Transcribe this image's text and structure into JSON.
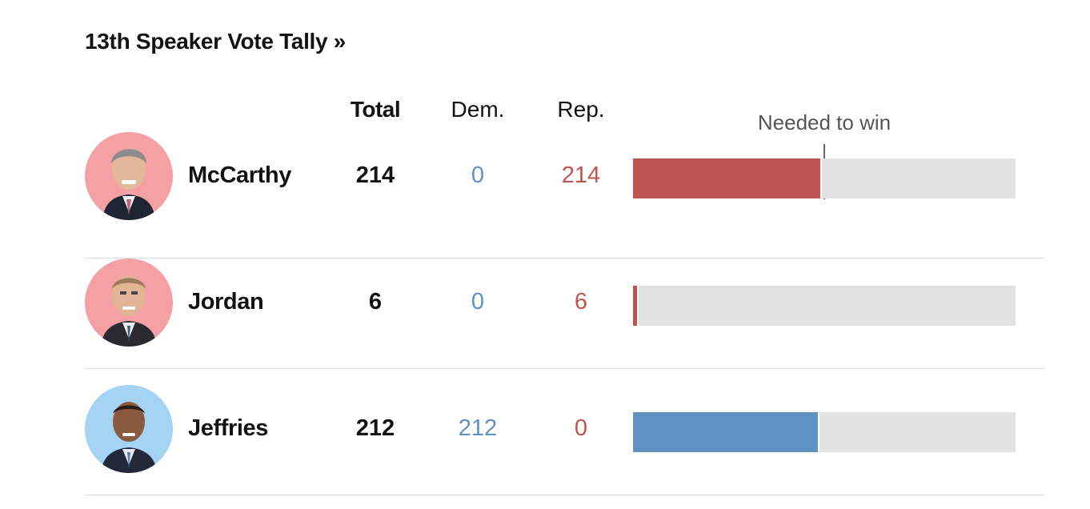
{
  "title": "13th Speaker Vote Tally »",
  "columns": {
    "total": "Total",
    "dem": "Dem.",
    "rep": "Rep."
  },
  "needed_label": "Needed to win",
  "colors": {
    "rep": "#bf5550",
    "dem": "#5f93c4",
    "track": "#e2e2e2",
    "rep_avatar_bg": "#f4a0a4",
    "dem_avatar_bg": "#a5d3f4"
  },
  "chart_data": {
    "type": "bar",
    "orientation": "horizontal",
    "title": "13th Speaker Vote Tally »",
    "bar_max": 434,
    "needed_to_win": 214,
    "candidates": [
      {
        "name": "McCarthy",
        "total": "214",
        "dem": "0",
        "rep": "214",
        "party": "rep",
        "votes": 214
      },
      {
        "name": "Jordan",
        "total": "6",
        "dem": "0",
        "rep": "6",
        "party": "rep",
        "votes": 6
      },
      {
        "name": "Jeffries",
        "total": "212",
        "dem": "212",
        "rep": "0",
        "party": "dem",
        "votes": 212
      }
    ]
  }
}
